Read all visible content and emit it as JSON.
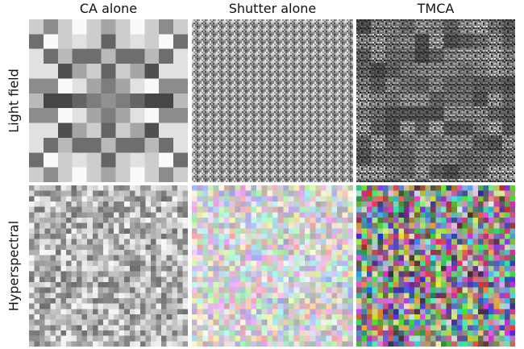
{
  "columns": [
    {
      "label": "CA alone"
    },
    {
      "label": "Shutter alone"
    },
    {
      "label": "TMCA"
    }
  ],
  "rows": [
    {
      "label": "Light field"
    },
    {
      "label": "Hyperspectral"
    }
  ]
}
